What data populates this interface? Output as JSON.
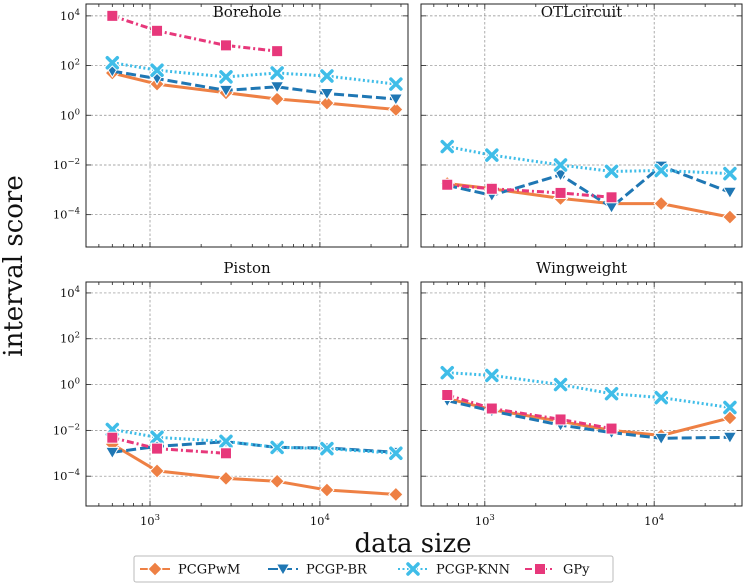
{
  "chart_data": {
    "type": "line",
    "suptitle": "",
    "xlabel": "data size",
    "ylabel": "interval score",
    "xscale": "log",
    "yscale": "log",
    "xlim": [
      420,
      33000
    ],
    "ylim": [
      5e-06,
      30000
    ],
    "grid": true,
    "legend_position": "bottom-center",
    "x_tick_labels": [
      "10^3",
      "10^4"
    ],
    "y_tick_labels": [
      "10^-4",
      "10^-2",
      "10^0",
      "10^2",
      "10^4"
    ],
    "series_styles": [
      {
        "name": "PCGPwM",
        "color": "#ee8044",
        "dash": "",
        "marker": "diamond"
      },
      {
        "name": "PCGP-BR",
        "color": "#1f77b4",
        "dash": "10 4",
        "marker": "triangle-down"
      },
      {
        "name": "PCGP-KNN",
        "color": "#3fbde8",
        "dash": "2 2.5",
        "marker": "x"
      },
      {
        "name": "GPy",
        "color": "#e7387b",
        "dash": "7 3 2 3",
        "marker": "square"
      }
    ],
    "panels": [
      {
        "title": "Borehole",
        "series": [
          {
            "name": "PCGPwM",
            "x": [
              600,
              1100,
              2800,
              5600,
              11000,
              28000
            ],
            "y": [
              50,
              18,
              8,
              4.5,
              3.1,
              1.7
            ]
          },
          {
            "name": "PCGP-BR",
            "x": [
              600,
              1100,
              2800,
              5600,
              11000,
              28000
            ],
            "y": [
              60,
              30,
              10,
              14,
              7.5,
              4.5
            ]
          },
          {
            "name": "PCGP-KNN",
            "x": [
              600,
              1100,
              2800,
              5600,
              11000,
              28000
            ],
            "y": [
              130,
              65,
              35,
              50,
              38,
              18
            ]
          },
          {
            "name": "GPy",
            "x": [
              600,
              1100,
              2800,
              5600
            ],
            "y": [
              10000,
              2500,
              650,
              380
            ]
          }
        ]
      },
      {
        "title": "OTLcircuit",
        "series": [
          {
            "name": "PCGPwM",
            "x": [
              600,
              1100,
              2800,
              5600,
              11000,
              28000
            ],
            "y": [
              0.0018,
              0.0011,
              0.00045,
              0.00028,
              0.00028,
              8e-05
            ]
          },
          {
            "name": "PCGP-BR",
            "x": [
              600,
              1100,
              2800,
              5600,
              11000,
              28000
            ],
            "y": [
              0.0015,
              0.0006,
              0.004,
              0.0002,
              0.009,
              0.0008
            ]
          },
          {
            "name": "PCGP-KNN",
            "x": [
              600,
              1100,
              2800,
              5600,
              11000,
              28000
            ],
            "y": [
              0.055,
              0.025,
              0.01,
              0.0055,
              0.006,
              0.0045
            ]
          },
          {
            "name": "GPy",
            "x": [
              600,
              1100,
              2800,
              5600
            ],
            "y": [
              0.0016,
              0.0011,
              0.00075,
              0.0005
            ]
          }
        ]
      },
      {
        "title": "Piston",
        "series": [
          {
            "name": "PCGPwM",
            "x": [
              600,
              1100,
              2800,
              5600,
              11000,
              28000
            ],
            "y": [
              0.0025,
              0.00017,
              8e-05,
              6e-05,
              2.5e-05,
              1.6e-05
            ]
          },
          {
            "name": "PCGP-BR",
            "x": [
              600,
              1100,
              2800,
              5600,
              11000,
              28000
            ],
            "y": [
              0.0011,
              0.002,
              0.0032,
              0.0018,
              0.0017,
              0.0011
            ]
          },
          {
            "name": "PCGP-KNN",
            "x": [
              600,
              1100,
              2800,
              5600,
              11000,
              28000
            ],
            "y": [
              0.011,
              0.005,
              0.0033,
              0.0018,
              0.0016,
              0.001
            ]
          },
          {
            "name": "GPy",
            "x": [
              600,
              1100,
              2800
            ],
            "y": [
              0.0048,
              0.0016,
              0.001
            ]
          }
        ]
      },
      {
        "title": "Wingweight",
        "series": [
          {
            "name": "PCGPwM",
            "x": [
              600,
              1100,
              2800,
              5600,
              11000,
              28000
            ],
            "y": [
              0.25,
              0.08,
              0.025,
              0.01,
              0.006,
              0.035
            ]
          },
          {
            "name": "PCGP-BR",
            "x": [
              600,
              1100,
              2800,
              5600,
              11000,
              28000
            ],
            "y": [
              0.2,
              0.07,
              0.017,
              0.008,
              0.0045,
              0.005
            ]
          },
          {
            "name": "PCGP-KNN",
            "x": [
              600,
              1100,
              2800,
              5600,
              11000,
              28000
            ],
            "y": [
              3.3,
              2.5,
              1.0,
              0.4,
              0.27,
              0.1
            ]
          },
          {
            "name": "GPy",
            "x": [
              600,
              1100,
              2800,
              5600
            ],
            "y": [
              0.35,
              0.09,
              0.03,
              0.012
            ]
          }
        ]
      }
    ]
  }
}
